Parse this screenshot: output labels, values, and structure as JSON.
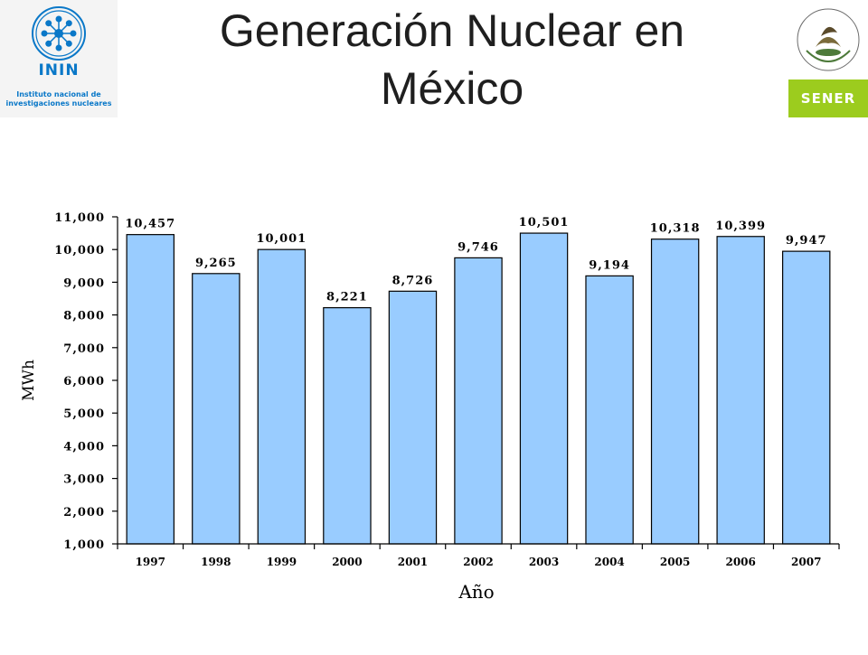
{
  "header": {
    "title_line1": "Generación Nuclear en",
    "title_line2": "México"
  },
  "logos": {
    "inin": {
      "name": "ININ",
      "subtitle_line1": "Instituto nacional de",
      "subtitle_line2": "investigaciones nucleares",
      "color": "#0a78c8"
    },
    "sener": {
      "name": "SENER",
      "crest_text": "ESTADOS UNIDOS MEXICANOS",
      "band_color": "#9ccc1e"
    }
  },
  "chart_data": {
    "type": "bar",
    "categories": [
      "1997",
      "1998",
      "1999",
      "2000",
      "2001",
      "2002",
      "2003",
      "2004",
      "2005",
      "2006",
      "2007"
    ],
    "values": [
      10457,
      9265,
      10001,
      8221,
      8726,
      9746,
      10501,
      9194,
      10318,
      10399,
      9947
    ],
    "data_labels": [
      "10,457",
      "9,265",
      "10,001",
      "8,221",
      "8,726",
      "9,746",
      "10,501",
      "9,194",
      "10,318",
      "10,399",
      "9,947"
    ],
    "ylim": [
      1000,
      11000
    ],
    "yticks": [
      1000,
      2000,
      3000,
      4000,
      5000,
      6000,
      7000,
      8000,
      9000,
      10000,
      11000
    ],
    "ytick_labels": [
      "1,000",
      "2,000",
      "3,000",
      "4,000",
      "5,000",
      "6,000",
      "7,000",
      "8,000",
      "9,000",
      "10,000",
      "11,000"
    ],
    "xlabel": "Año",
    "ylabel": "MWh",
    "grid": false,
    "bar_color": "#99ccff",
    "bar_edge": "#000000"
  }
}
